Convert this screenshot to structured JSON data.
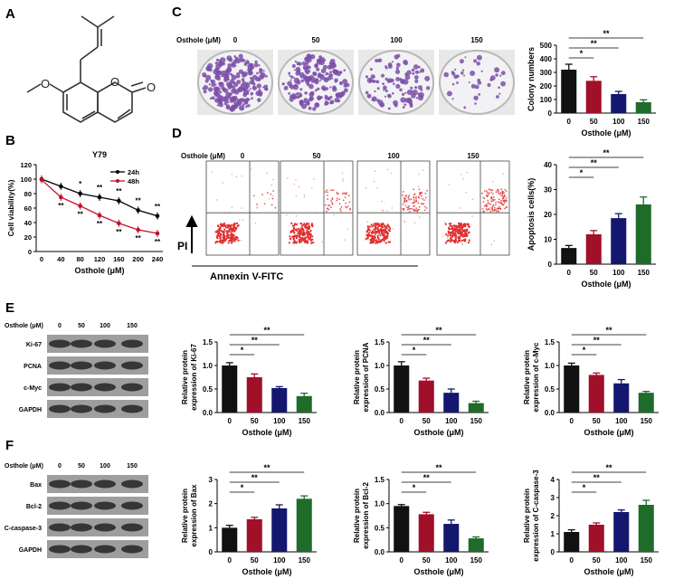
{
  "panels": {
    "A": "A",
    "B": "B",
    "C": "C",
    "D": "D",
    "E": "E",
    "F": "F"
  },
  "structure": {
    "atom_O1": "O",
    "atom_O2": "O",
    "atom_O3": "O"
  },
  "dish_row": {
    "title": "Osthole (μM)",
    "doses": [
      "0",
      "50",
      "100",
      "150"
    ],
    "colony_color": "#7b4fa8",
    "colony_density": [
      1.0,
      0.8,
      0.45,
      0.18
    ]
  },
  "flow_row": {
    "title": "Osthole (μM)",
    "doses": [
      "0",
      "50",
      "100",
      "150"
    ],
    "y_label": "PI",
    "x_label": "Annexin V-FITC",
    "dot_color": "#e03030"
  },
  "wb_E": {
    "title": "Osthole (μM)",
    "doses": [
      "0",
      "50",
      "100",
      "150"
    ],
    "bands": [
      "Ki-67",
      "PCNA",
      "c-Myc",
      "GAPDH"
    ]
  },
  "wb_F": {
    "title": "Osthole (μM)",
    "doses": [
      "0",
      "50",
      "100",
      "150"
    ],
    "bands": [
      "Bax",
      "Bcl-2",
      "C-caspase-3",
      "GAPDH"
    ]
  },
  "chart_data": [
    {
      "id": "B",
      "type": "line",
      "title": "Y79",
      "xlabel": "Osthole (μM)",
      "ylabel": "Cell viability(%)",
      "x": [
        0,
        40,
        80,
        120,
        160,
        200,
        240
      ],
      "ylim": [
        0,
        120
      ],
      "yticks": [
        "0",
        "20",
        "40",
        "60",
        "80",
        "100",
        "120"
      ],
      "series": [
        {
          "name": "24h",
          "color": "#000000",
          "values": [
            100,
            90,
            80,
            75,
            70,
            57,
            49
          ],
          "marks": [
            "",
            "",
            "*",
            "**",
            "**",
            "**",
            "**"
          ]
        },
        {
          "name": "48h",
          "color": "#c0102a",
          "values": [
            99,
            75,
            63,
            50,
            39,
            30,
            25
          ],
          "marks": [
            "",
            "**",
            "**",
            "**",
            "**",
            "**",
            "**"
          ]
        }
      ]
    },
    {
      "id": "C",
      "type": "bar",
      "ylabel": "Colony numbers",
      "xlabel": "Osthole (μM)",
      "categories": [
        "0",
        "50",
        "100",
        "150"
      ],
      "values": [
        320,
        238,
        140,
        80
      ],
      "errors": [
        40,
        30,
        20,
        18
      ],
      "ylim": [
        0,
        500
      ],
      "yticks": [
        "0",
        "100",
        "200",
        "300",
        "400",
        "500"
      ],
      "sig": [
        "*",
        "**",
        "**"
      ]
    },
    {
      "id": "D",
      "type": "bar",
      "ylabel": "Apoptosis cells(%)",
      "xlabel": "Osthole (μM)",
      "categories": [
        "0",
        "50",
        "100",
        "150"
      ],
      "values": [
        6.5,
        12,
        18.5,
        24
      ],
      "errors": [
        1,
        1.5,
        1.8,
        3
      ],
      "ylim": [
        0,
        40
      ],
      "yticks": [
        "0",
        "10",
        "20",
        "30",
        "40"
      ],
      "sig": [
        "*",
        "**",
        "**"
      ]
    },
    {
      "id": "E1",
      "type": "bar",
      "ylabel": "Relative protein expression of Ki-67",
      "xlabel": "Osthole (μM)",
      "categories": [
        "0",
        "50",
        "100",
        "150"
      ],
      "values": [
        1.0,
        0.75,
        0.52,
        0.35
      ],
      "errors": [
        0.06,
        0.07,
        0.03,
        0.06
      ],
      "ylim": [
        0,
        1.5
      ],
      "yticks": [
        "0.0",
        "0.5",
        "1.0",
        "1.5"
      ],
      "sig": [
        "*",
        "**",
        "**"
      ]
    },
    {
      "id": "E2",
      "type": "bar",
      "ylabel": "Relative protein expression of PCNA",
      "xlabel": "Osthole (μM)",
      "categories": [
        "0",
        "50",
        "100",
        "150"
      ],
      "values": [
        1.0,
        0.68,
        0.42,
        0.2
      ],
      "errors": [
        0.08,
        0.05,
        0.08,
        0.04
      ],
      "ylim": [
        0,
        1.5
      ],
      "yticks": [
        "0.0",
        "0.5",
        "1.0",
        "1.5"
      ],
      "sig": [
        "*",
        "**",
        "**"
      ]
    },
    {
      "id": "E3",
      "type": "bar",
      "ylabel": "Relative protein expression of c-Myc",
      "xlabel": "Osthole (μM)",
      "categories": [
        "0",
        "50",
        "100",
        "150"
      ],
      "values": [
        1.0,
        0.8,
        0.62,
        0.42
      ],
      "errors": [
        0.05,
        0.04,
        0.08,
        0.03
      ],
      "ylim": [
        0,
        1.5
      ],
      "yticks": [
        "0.0",
        "0.5",
        "1.0",
        "1.5"
      ],
      "sig": [
        "*",
        "**",
        "**"
      ]
    },
    {
      "id": "F1",
      "type": "bar",
      "ylabel": "Relative protein expression of Bax",
      "xlabel": "Osthole (μM)",
      "categories": [
        "0",
        "50",
        "100",
        "150"
      ],
      "values": [
        1.0,
        1.35,
        1.8,
        2.2
      ],
      "errors": [
        0.1,
        0.08,
        0.15,
        0.12
      ],
      "ylim": [
        0,
        3
      ],
      "yticks": [
        "0",
        "1",
        "2",
        "3"
      ],
      "sig": [
        "*",
        "**",
        "**"
      ]
    },
    {
      "id": "F2",
      "type": "bar",
      "ylabel": "Relative protein expression of Bcl-2",
      "xlabel": "Osthole (μM)",
      "categories": [
        "0",
        "50",
        "100",
        "150"
      ],
      "values": [
        0.95,
        0.78,
        0.58,
        0.28
      ],
      "errors": [
        0.03,
        0.04,
        0.08,
        0.03
      ],
      "ylim": [
        0,
        1.5
      ],
      "yticks": [
        "0.0",
        "0.5",
        "1.0",
        "1.5"
      ],
      "sig": [
        "*",
        "**",
        "**"
      ]
    },
    {
      "id": "F3",
      "type": "bar",
      "ylabel": "Relative protein expression of C-caspase-3",
      "xlabel": "Osthole (μM)",
      "categories": [
        "0",
        "50",
        "100",
        "150"
      ],
      "values": [
        1.1,
        1.5,
        2.2,
        2.6
      ],
      "errors": [
        0.12,
        0.1,
        0.12,
        0.25
      ],
      "ylim": [
        0,
        4
      ],
      "yticks": [
        "0",
        "1",
        "2",
        "3",
        "4"
      ],
      "sig": [
        "*",
        "**",
        "**"
      ]
    }
  ],
  "bar_colors": [
    "#111111",
    "#a01028",
    "#14176e",
    "#1f6b2a"
  ]
}
